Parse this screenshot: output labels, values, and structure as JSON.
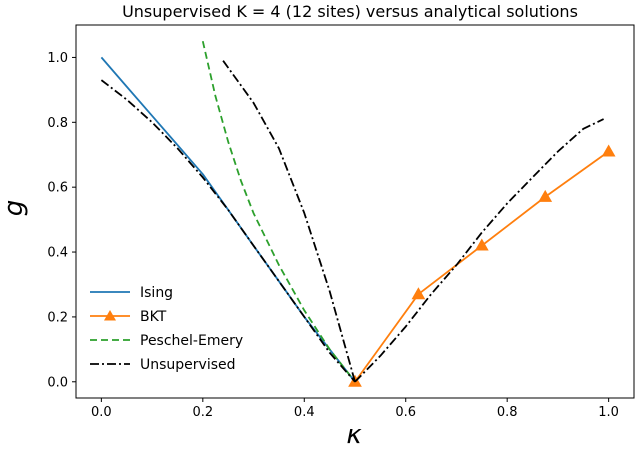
{
  "chart_data": {
    "type": "line",
    "title": "Unsupervised K = 4 (12 sites) versus analytical solutions",
    "xlabel": "κ",
    "ylabel": "g",
    "xlim": [
      -0.05,
      1.05
    ],
    "ylim": [
      -0.05,
      1.1
    ],
    "xticks": [
      "0.0",
      "0.2",
      "0.4",
      "0.6",
      "0.8",
      "1.0"
    ],
    "yticks": [
      "0.0",
      "0.2",
      "0.4",
      "0.6",
      "0.8",
      "1.0"
    ],
    "xtick_values": [
      0,
      0.2,
      0.4,
      0.6,
      0.8,
      1.0
    ],
    "ytick_values": [
      0,
      0.2,
      0.4,
      0.6,
      0.8,
      1.0
    ],
    "grid": false,
    "legend_position": "lower-left",
    "series": [
      {
        "name": "Ising",
        "color": "#1f77b4",
        "style": "solid",
        "marker": "none",
        "x": [
          0,
          0.05,
          0.1,
          0.15,
          0.2,
          0.25,
          0.3,
          0.35,
          0.4,
          0.45,
          0.5
        ],
        "y": [
          1.0,
          0.91,
          0.82,
          0.73,
          0.64,
          0.53,
          0.42,
          0.31,
          0.2,
          0.1,
          0.0
        ]
      },
      {
        "name": "BKT",
        "color": "#ff7f0e",
        "style": "solid",
        "marker": "triangle",
        "x": [
          0.5,
          0.625,
          0.75,
          0.875,
          1.0
        ],
        "y": [
          0.0,
          0.27,
          0.42,
          0.57,
          0.71
        ]
      },
      {
        "name": "Peschel-Emery",
        "color": "#2ca02c",
        "style": "dashed",
        "marker": "none",
        "x": [
          0.2,
          0.225,
          0.25,
          0.275,
          0.3,
          0.35,
          0.4,
          0.45,
          0.5
        ],
        "y": [
          1.05,
          0.88,
          0.74,
          0.62,
          0.52,
          0.36,
          0.22,
          0.1,
          0.0
        ]
      },
      {
        "name": "Unsupervised",
        "color": "#000000",
        "style": "dashdot",
        "marker": "none",
        "x": [
          0.0,
          0.05,
          0.1,
          0.15,
          0.2,
          0.25,
          0.3,
          0.35,
          0.4,
          0.45,
          0.5,
          null,
          0.24,
          0.3,
          0.35,
          0.4,
          0.45,
          0.5,
          null,
          0.5,
          0.55,
          0.6,
          0.65,
          0.7,
          0.75,
          0.8,
          0.85,
          0.9,
          0.95,
          0.99
        ],
        "y": [
          0.93,
          0.87,
          0.8,
          0.72,
          0.63,
          0.53,
          0.42,
          0.31,
          0.2,
          0.09,
          0.0,
          null,
          0.99,
          0.86,
          0.72,
          0.52,
          0.28,
          0.0,
          null,
          0.0,
          0.08,
          0.17,
          0.27,
          0.36,
          0.46,
          0.55,
          0.63,
          0.71,
          0.78,
          0.81
        ]
      }
    ]
  }
}
